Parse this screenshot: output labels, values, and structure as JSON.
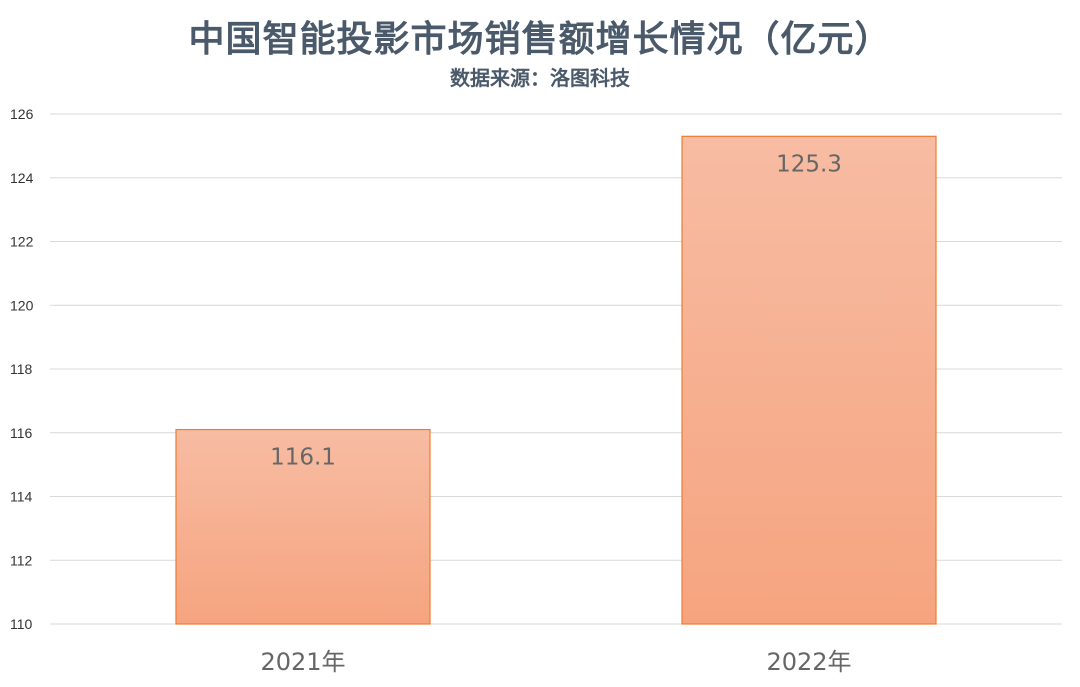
{
  "chart_data": {
    "type": "bar",
    "title": "中国智能投影市场销售额增长情况（亿元）",
    "subtitle": "数据来源：洛图科技",
    "categories": [
      "2021年",
      "2022年"
    ],
    "values": [
      116.1,
      125.3
    ],
    "value_labels": [
      "116.1",
      "125.3"
    ],
    "ylim": [
      110,
      126
    ],
    "yticks": [
      110,
      112,
      114,
      116,
      118,
      120,
      122,
      124,
      126
    ],
    "grid": true,
    "legend": "none",
    "colors": {
      "bar_top": "#f7bca3",
      "bar_bottom": "#f6a47f",
      "bar_stroke": "#ed7d31",
      "grid": "#d9d9d9"
    }
  }
}
